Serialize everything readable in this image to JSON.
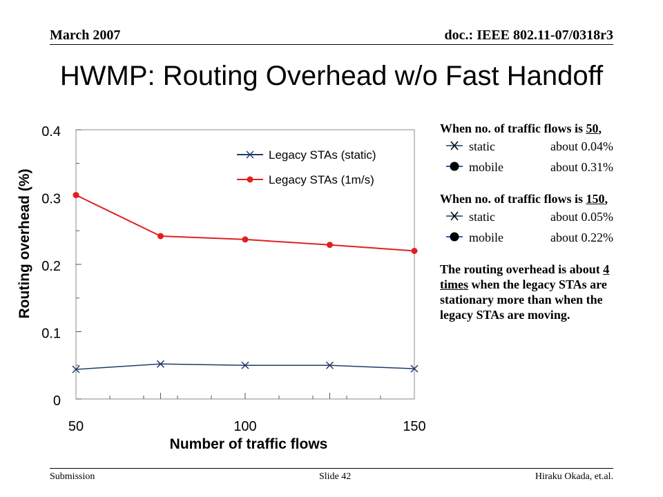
{
  "header": {
    "date": "March 2007",
    "doc": "doc.: IEEE 802.11-07/0318r3"
  },
  "title": "HWMP: Routing Overhead w/o Fast Handoff",
  "chart_data": {
    "type": "line",
    "xlabel": "Number of traffic flows",
    "ylabel": "Routing overhead (%)",
    "xlim": [
      50,
      150
    ],
    "ylim": [
      0,
      0.4
    ],
    "x_ticks": [
      "50",
      "100",
      "150"
    ],
    "y_ticks": [
      "0",
      "0.1",
      "0.2",
      "0.3",
      "0.4"
    ],
    "legend_position": "top-right",
    "series": [
      {
        "name": "Legacy STAs (static)",
        "marker": "x",
        "color": "#1f3a6a",
        "x": [
          50,
          75,
          100,
          125,
          150
        ],
        "y": [
          0.044,
          0.052,
          0.05,
          0.05,
          0.045
        ]
      },
      {
        "name": "Legacy STAs (1m/s)",
        "marker": "circle",
        "color": "#e02020",
        "x": [
          50,
          75,
          100,
          125,
          150
        ],
        "y": [
          0.303,
          0.242,
          0.237,
          0.229,
          0.22
        ]
      }
    ]
  },
  "notes": {
    "block1_intro": "When no. of traffic flows is",
    "block1_count": "50",
    "block1_tail": ",",
    "block2_intro": "When no. of traffic flows is",
    "block2_count": "150",
    "block2_tail": ",",
    "static_label": "static",
    "mobile_label": "mobile",
    "static_50": "about 0.04%",
    "mobile_50": "about 0.31%",
    "static_150": "about 0.05%",
    "mobile_150": "about 0.22%",
    "conclusion_pre": "The routing overhead is about ",
    "conclusion_em": "4 times",
    "conclusion_post": " when the legacy STAs are stationary more than when the legacy STAs are moving.",
    "static_icon": "x-marker-icon",
    "mobile_icon": "circle-marker-icon"
  },
  "footer": {
    "left": "Submission",
    "center": "Slide 42",
    "right": "Hiraku Okada, et.al."
  }
}
